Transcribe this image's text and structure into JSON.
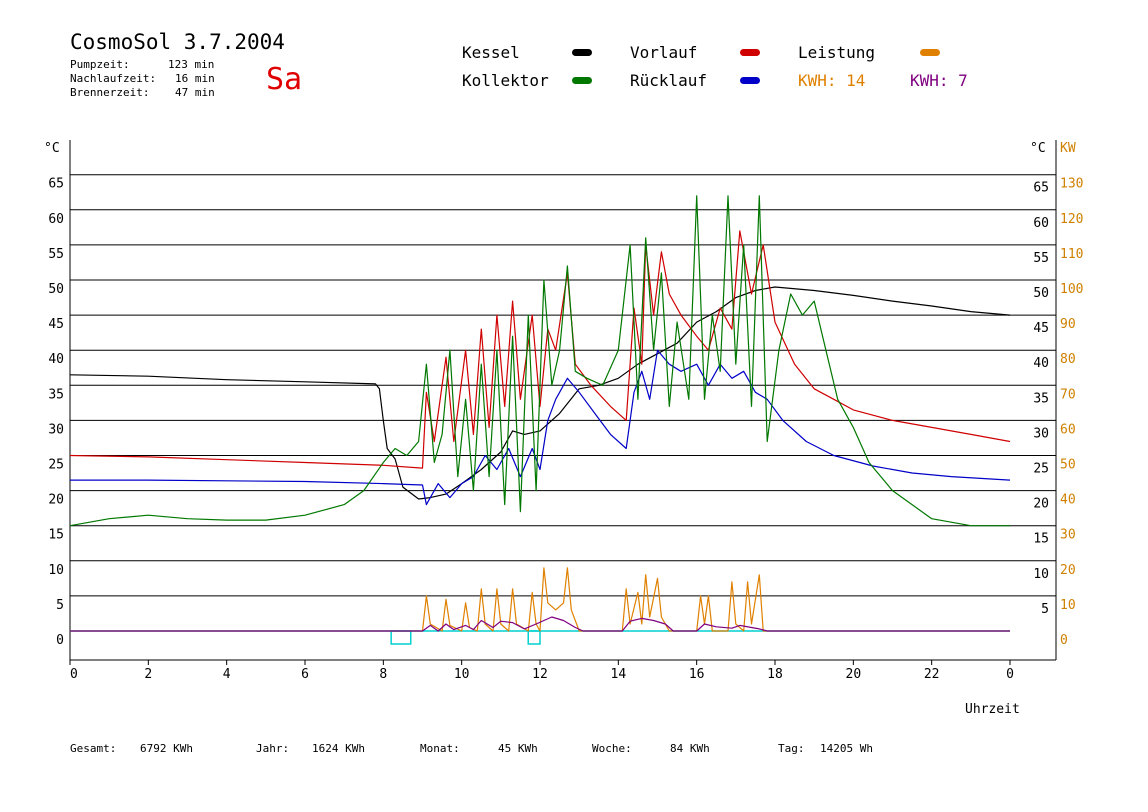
{
  "header": {
    "title": "CosmoSol 3.7.2004",
    "day": "Sa",
    "stats": [
      {
        "label": "Pumpzeit:",
        "value": "123 min"
      },
      {
        "label": "Nachlaufzeit:",
        "value": "16 min"
      },
      {
        "label": "Brennerzeit:",
        "value": "47 min"
      }
    ]
  },
  "legend": {
    "kessel": "Kessel",
    "kollektor": "Kollektor",
    "vorlauf": "Vorlauf",
    "ruecklauf": "Rücklauf",
    "leistung": "Leistung",
    "kwh1": "KWH: 14",
    "kwh2": "KWH: 7"
  },
  "colors": {
    "kessel": "#000000",
    "kollektor": "#007800",
    "vorlauf": "#d00000",
    "ruecklauf": "#0000c8",
    "leistung": "#e08000",
    "kwh2": "#800080",
    "pump": "#00d0d0",
    "right_axis": "#d08000"
  },
  "footer": {
    "gesamt_label": "Gesamt:",
    "gesamt_value": "6792 KWh",
    "jahr_label": "Jahr:",
    "jahr_value": "1624 KWh",
    "monat_label": "Monat:",
    "monat_value": "45 KWh",
    "woche_label": "Woche:",
    "woche_value": "84 KWh",
    "tag_label": "Tag:",
    "tag_value": "14205 Wh"
  },
  "chart_data": {
    "type": "line",
    "xlabel": "Uhrzeit",
    "ylabel_left": "°C",
    "ylabel_right_1": "°C",
    "ylabel_right_2": "KW",
    "x_ticks": [
      "0",
      "2",
      "4",
      "6",
      "8",
      "10",
      "12",
      "14",
      "16",
      "18",
      "20",
      "22",
      "0"
    ],
    "y_left_ticks": [
      0,
      5,
      10,
      15,
      20,
      25,
      30,
      35,
      40,
      45,
      50,
      55,
      60,
      65
    ],
    "y_right_ticks": [
      5,
      10,
      15,
      20,
      25,
      30,
      35,
      40,
      45,
      50,
      55,
      60,
      65
    ],
    "kw_ticks": [
      0,
      10,
      20,
      30,
      40,
      50,
      60,
      70,
      80,
      90,
      100,
      110,
      120,
      130
    ],
    "ylim": [
      0,
      65
    ],
    "xlim": [
      0,
      24
    ],
    "series": [
      {
        "name": "Kessel",
        "color": "#000000",
        "points": [
          [
            0,
            36.5
          ],
          [
            2,
            36.3
          ],
          [
            4,
            35.8
          ],
          [
            6,
            35.5
          ],
          [
            7.8,
            35.2
          ],
          [
            7.9,
            34.5
          ],
          [
            8.0,
            30
          ],
          [
            8.1,
            26
          ],
          [
            8.3,
            24.5
          ],
          [
            8.5,
            20.5
          ],
          [
            8.9,
            18.8
          ],
          [
            9.2,
            19
          ],
          [
            9.6,
            19.5
          ],
          [
            10,
            21
          ],
          [
            10.5,
            23
          ],
          [
            11,
            25.5
          ],
          [
            11.3,
            28.5
          ],
          [
            11.6,
            28
          ],
          [
            12,
            28.5
          ],
          [
            12.5,
            31
          ],
          [
            13,
            34.5
          ],
          [
            13.5,
            35
          ],
          [
            14,
            36
          ],
          [
            14.5,
            38
          ],
          [
            15,
            39.5
          ],
          [
            15.5,
            41
          ],
          [
            16,
            44
          ],
          [
            16.5,
            45.5
          ],
          [
            17,
            47.5
          ],
          [
            17.5,
            48.5
          ],
          [
            18,
            49
          ],
          [
            19,
            48.5
          ],
          [
            20,
            47.8
          ],
          [
            21,
            47
          ],
          [
            22,
            46.3
          ],
          [
            23,
            45.5
          ],
          [
            24,
            45
          ]
        ]
      },
      {
        "name": "Vorlauf",
        "color": "#d00000",
        "points": [
          [
            0,
            25
          ],
          [
            2,
            24.8
          ],
          [
            4,
            24.4
          ],
          [
            6,
            24
          ],
          [
            8,
            23.6
          ],
          [
            9,
            23.2
          ],
          [
            9.1,
            34
          ],
          [
            9.3,
            27
          ],
          [
            9.6,
            39
          ],
          [
            9.8,
            27
          ],
          [
            10.1,
            40
          ],
          [
            10.3,
            28
          ],
          [
            10.5,
            43
          ],
          [
            10.7,
            29
          ],
          [
            10.9,
            45
          ],
          [
            11.1,
            32
          ],
          [
            11.3,
            47
          ],
          [
            11.5,
            33
          ],
          [
            11.8,
            45
          ],
          [
            12.0,
            32
          ],
          [
            12.2,
            43
          ],
          [
            12.4,
            40
          ],
          [
            12.7,
            51
          ],
          [
            12.9,
            38
          ],
          [
            13.3,
            35
          ],
          [
            13.8,
            32
          ],
          [
            14.2,
            30
          ],
          [
            14.4,
            46
          ],
          [
            14.6,
            38
          ],
          [
            14.7,
            55
          ],
          [
            14.9,
            45
          ],
          [
            15.1,
            54
          ],
          [
            15.3,
            48
          ],
          [
            15.6,
            45
          ],
          [
            16.0,
            42
          ],
          [
            16.3,
            40
          ],
          [
            16.6,
            46
          ],
          [
            16.9,
            43
          ],
          [
            17.1,
            57
          ],
          [
            17.4,
            48
          ],
          [
            17.7,
            55
          ],
          [
            18,
            44
          ],
          [
            18.5,
            38
          ],
          [
            19,
            34.5
          ],
          [
            19.5,
            33
          ],
          [
            20,
            31.5
          ],
          [
            21,
            30
          ],
          [
            22,
            29
          ],
          [
            23,
            28
          ],
          [
            24,
            27
          ]
        ]
      },
      {
        "name": "Rücklauf",
        "color": "#0000c8",
        "points": [
          [
            0,
            21.5
          ],
          [
            2,
            21.5
          ],
          [
            4,
            21.4
          ],
          [
            6,
            21.3
          ],
          [
            8,
            21
          ],
          [
            9,
            20.8
          ],
          [
            9.1,
            18
          ],
          [
            9.4,
            21
          ],
          [
            9.7,
            19
          ],
          [
            10,
            21
          ],
          [
            10.3,
            22
          ],
          [
            10.6,
            25
          ],
          [
            10.9,
            23
          ],
          [
            11.2,
            26
          ],
          [
            11.5,
            22
          ],
          [
            11.8,
            26
          ],
          [
            12.0,
            23
          ],
          [
            12.2,
            30
          ],
          [
            12.4,
            33
          ],
          [
            12.7,
            36
          ],
          [
            13.0,
            34
          ],
          [
            13.4,
            31
          ],
          [
            13.8,
            28
          ],
          [
            14.2,
            26
          ],
          [
            14.4,
            34
          ],
          [
            14.6,
            37
          ],
          [
            14.8,
            33
          ],
          [
            15.0,
            40
          ],
          [
            15.3,
            38
          ],
          [
            15.6,
            37
          ],
          [
            16.0,
            38
          ],
          [
            16.3,
            35
          ],
          [
            16.6,
            38
          ],
          [
            16.9,
            36
          ],
          [
            17.2,
            37
          ],
          [
            17.5,
            34
          ],
          [
            17.8,
            33
          ],
          [
            18.2,
            30
          ],
          [
            18.8,
            27
          ],
          [
            19.5,
            25
          ],
          [
            20.5,
            23.5
          ],
          [
            21.5,
            22.5
          ],
          [
            22.5,
            22
          ],
          [
            24,
            21.5
          ]
        ]
      },
      {
        "name": "Kollektor",
        "color": "#007800",
        "points": [
          [
            0,
            15
          ],
          [
            1,
            16
          ],
          [
            2,
            16.5
          ],
          [
            3,
            16
          ],
          [
            4,
            15.8
          ],
          [
            5,
            15.8
          ],
          [
            6,
            16.5
          ],
          [
            7,
            18
          ],
          [
            7.5,
            20
          ],
          [
            8,
            24
          ],
          [
            8.3,
            26
          ],
          [
            8.6,
            25
          ],
          [
            8.9,
            27
          ],
          [
            9.1,
            38
          ],
          [
            9.3,
            24
          ],
          [
            9.5,
            28
          ],
          [
            9.7,
            40
          ],
          [
            9.9,
            22
          ],
          [
            10.1,
            33
          ],
          [
            10.3,
            20
          ],
          [
            10.5,
            38
          ],
          [
            10.7,
            22
          ],
          [
            10.9,
            40
          ],
          [
            11.1,
            18
          ],
          [
            11.3,
            42
          ],
          [
            11.5,
            17
          ],
          [
            11.7,
            45
          ],
          [
            11.9,
            20
          ],
          [
            12.1,
            50
          ],
          [
            12.3,
            35
          ],
          [
            12.5,
            40
          ],
          [
            12.7,
            52
          ],
          [
            12.9,
            37
          ],
          [
            13.2,
            36
          ],
          [
            13.6,
            35
          ],
          [
            14.0,
            40
          ],
          [
            14.3,
            55
          ],
          [
            14.5,
            33
          ],
          [
            14.7,
            56
          ],
          [
            14.9,
            40
          ],
          [
            15.1,
            51
          ],
          [
            15.3,
            32
          ],
          [
            15.5,
            44
          ],
          [
            15.8,
            33
          ],
          [
            16.0,
            62
          ],
          [
            16.2,
            33
          ],
          [
            16.4,
            45
          ],
          [
            16.6,
            37
          ],
          [
            16.8,
            62
          ],
          [
            17.0,
            38
          ],
          [
            17.2,
            55
          ],
          [
            17.4,
            32
          ],
          [
            17.6,
            62
          ],
          [
            17.8,
            27
          ],
          [
            18.1,
            40
          ],
          [
            18.4,
            48
          ],
          [
            18.7,
            45
          ],
          [
            19.0,
            47
          ],
          [
            19.3,
            40
          ],
          [
            19.6,
            33
          ],
          [
            20.0,
            29
          ],
          [
            20.4,
            24
          ],
          [
            21,
            20
          ],
          [
            22,
            16
          ],
          [
            23,
            15
          ],
          [
            24,
            15
          ]
        ]
      },
      {
        "name": "Leistung",
        "color": "#e08000",
        "points": [
          [
            0,
            0
          ],
          [
            9.0,
            0
          ],
          [
            9.1,
            5
          ],
          [
            9.2,
            1
          ],
          [
            9.5,
            0
          ],
          [
            9.6,
            4.5
          ],
          [
            9.7,
            0.8
          ],
          [
            10.0,
            0
          ],
          [
            10.1,
            4
          ],
          [
            10.2,
            0.5
          ],
          [
            10.4,
            0
          ],
          [
            10.5,
            6
          ],
          [
            10.6,
            1
          ],
          [
            10.8,
            0
          ],
          [
            10.9,
            6
          ],
          [
            11.0,
            1
          ],
          [
            11.2,
            0
          ],
          [
            11.3,
            6
          ],
          [
            11.4,
            1
          ],
          [
            11.7,
            0
          ],
          [
            11.8,
            5.5
          ],
          [
            11.9,
            1
          ],
          [
            12.0,
            0
          ],
          [
            12.1,
            9
          ],
          [
            12.2,
            4
          ],
          [
            12.4,
            3
          ],
          [
            12.6,
            4
          ],
          [
            12.7,
            9
          ],
          [
            12.8,
            3
          ],
          [
            13.0,
            0
          ],
          [
            14.1,
            0
          ],
          [
            14.2,
            6
          ],
          [
            14.3,
            1
          ],
          [
            14.5,
            5.5
          ],
          [
            14.6,
            1
          ],
          [
            14.7,
            8
          ],
          [
            14.8,
            2
          ],
          [
            15.0,
            7.5
          ],
          [
            15.1,
            2
          ],
          [
            15.3,
            0
          ],
          [
            16.0,
            0
          ],
          [
            16.1,
            5
          ],
          [
            16.2,
            1
          ],
          [
            16.3,
            5
          ],
          [
            16.4,
            0
          ],
          [
            16.8,
            0
          ],
          [
            16.9,
            7
          ],
          [
            17.0,
            1
          ],
          [
            17.2,
            0
          ],
          [
            17.3,
            7
          ],
          [
            17.4,
            1
          ],
          [
            17.6,
            8
          ],
          [
            17.7,
            0
          ],
          [
            24,
            0
          ]
        ]
      },
      {
        "name": "KWH: 7",
        "color": "#800080",
        "points": [
          [
            0,
            0
          ],
          [
            9.0,
            0
          ],
          [
            9.2,
            0.8
          ],
          [
            9.4,
            0
          ],
          [
            9.6,
            1
          ],
          [
            9.8,
            0.2
          ],
          [
            10.1,
            0.8
          ],
          [
            10.3,
            0.2
          ],
          [
            10.5,
            1.5
          ],
          [
            10.8,
            0.5
          ],
          [
            11.0,
            1.4
          ],
          [
            11.3,
            1.2
          ],
          [
            11.6,
            0.3
          ],
          [
            11.9,
            1
          ],
          [
            12.1,
            1.5
          ],
          [
            12.3,
            2
          ],
          [
            12.6,
            1.5
          ],
          [
            12.9,
            0.5
          ],
          [
            13.1,
            0
          ],
          [
            14.1,
            0
          ],
          [
            14.3,
            1.4
          ],
          [
            14.6,
            1.8
          ],
          [
            14.9,
            1.5
          ],
          [
            15.2,
            1
          ],
          [
            15.4,
            0
          ],
          [
            16.0,
            0
          ],
          [
            16.2,
            1
          ],
          [
            16.5,
            0.6
          ],
          [
            16.9,
            0.4
          ],
          [
            17.1,
            0.8
          ],
          [
            17.4,
            0.5
          ],
          [
            17.6,
            0.3
          ],
          [
            17.8,
            0
          ],
          [
            24,
            0
          ]
        ]
      }
    ],
    "pump_blocks": [
      [
        8.2,
        8.7
      ],
      [
        11.7,
        12.0
      ]
    ]
  }
}
